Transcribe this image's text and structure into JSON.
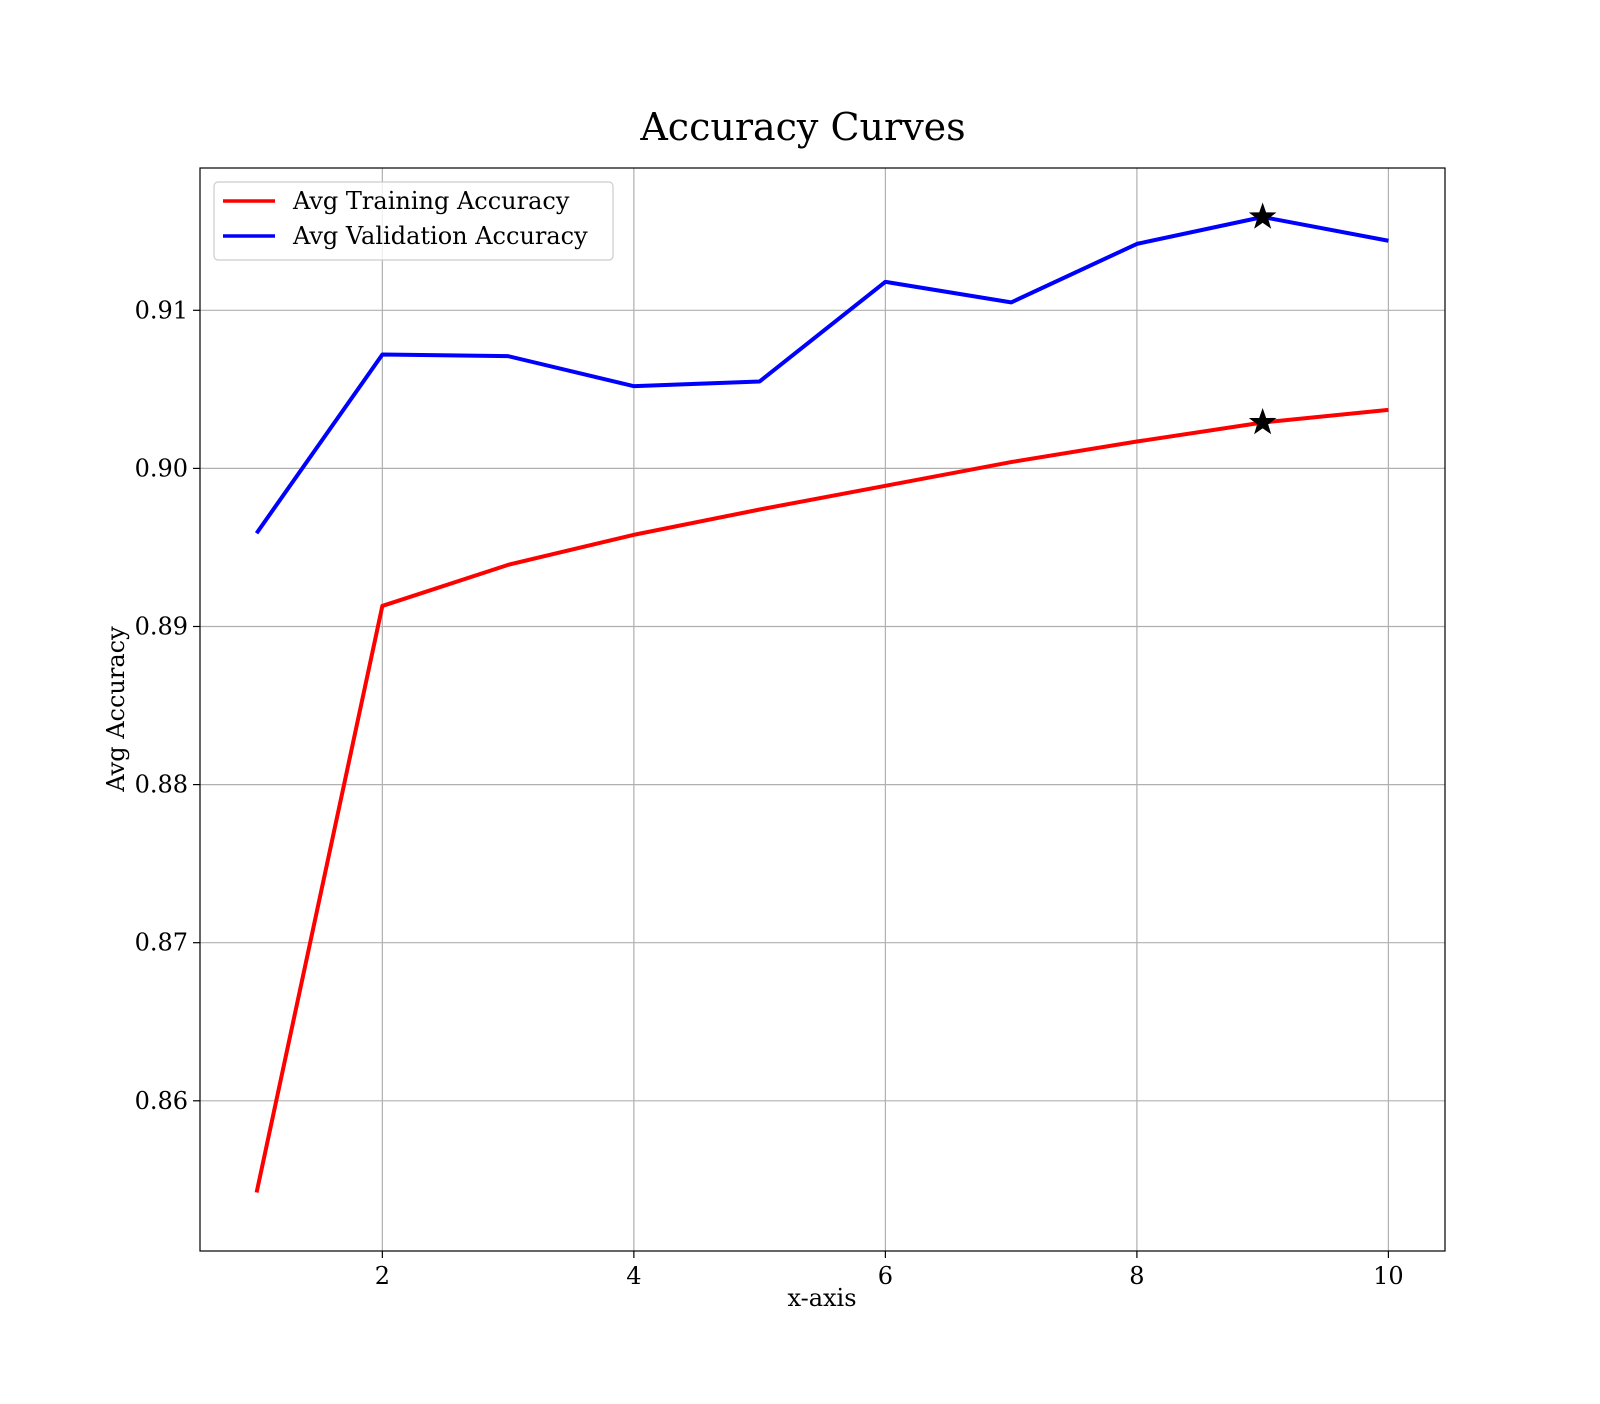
{
  "chart_data": {
    "type": "line",
    "title": "Accuracy Curves",
    "xlabel": "x-axis",
    "ylabel": "Avg Accuracy",
    "x": [
      1,
      2,
      3,
      4,
      5,
      6,
      7,
      8,
      9,
      10
    ],
    "xlim": [
      0.55,
      10.45
    ],
    "ylim": [
      0.8505,
      0.919
    ],
    "xticks": [
      2,
      4,
      6,
      8,
      10
    ],
    "xtick_labels": [
      "2",
      "4",
      "6",
      "8",
      "10"
    ],
    "yticks": [
      0.86,
      0.87,
      0.88,
      0.89,
      0.9,
      0.91
    ],
    "ytick_labels": [
      "0.86",
      "0.87",
      "0.88",
      "0.89",
      "0.90",
      "0.91"
    ],
    "grid": true,
    "legend_position": "top-left",
    "series": [
      {
        "name": "Avg Training Accuracy",
        "color": "#ff0000",
        "values": [
          0.8542,
          0.8913,
          0.8939,
          0.8958,
          0.8974,
          0.8989,
          0.9004,
          0.9017,
          0.9029,
          0.9037
        ]
      },
      {
        "name": "Avg Validation Accuracy",
        "color": "#0000ff",
        "values": [
          0.8959,
          0.9072,
          0.9071,
          0.9052,
          0.9055,
          0.9118,
          0.9105,
          0.9142,
          0.9159,
          0.9144
        ]
      }
    ],
    "markers": [
      {
        "series": "Avg Training Accuracy",
        "x": 9,
        "y": 0.9029,
        "symbol": "star",
        "color": "#000000"
      },
      {
        "series": "Avg Validation Accuracy",
        "x": 9,
        "y": 0.9159,
        "symbol": "star",
        "color": "#000000"
      }
    ]
  }
}
